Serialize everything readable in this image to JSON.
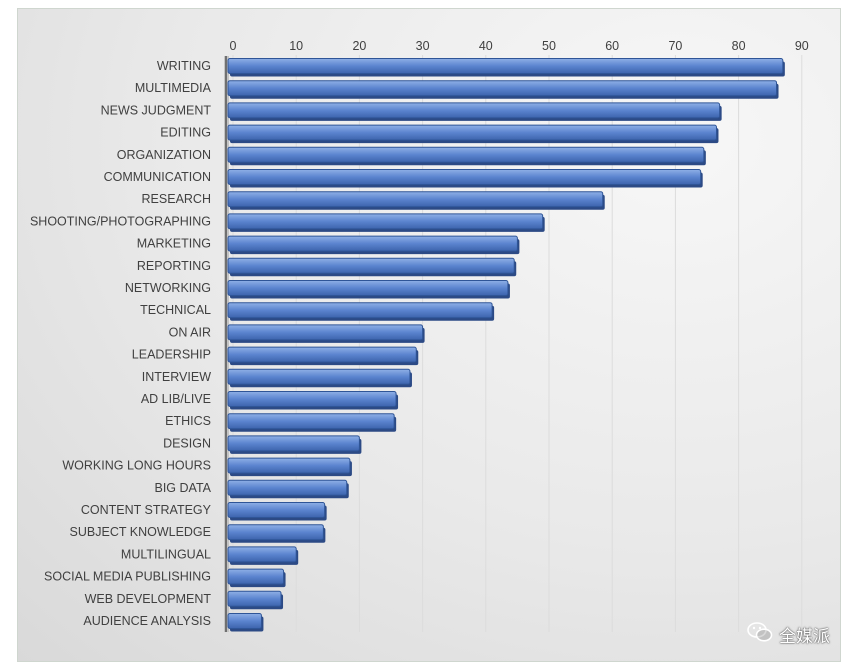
{
  "chart_data": {
    "type": "bar",
    "orientation": "horizontal",
    "title": "",
    "xlabel": "",
    "ylabel": "",
    "xlim": [
      0,
      90
    ],
    "ticks": [
      0,
      10,
      20,
      30,
      40,
      50,
      60,
      70,
      80,
      90
    ],
    "grid": true,
    "categories": [
      "WRITING",
      "MULTIMEDIA",
      "NEWS JUDGMENT",
      "EDITING",
      "ORGANIZATION",
      "COMMUNICATION",
      "RESEARCH",
      "SHOOTING/PHOTOGRAPHING",
      "MARKETING",
      "REPORTING",
      "NETWORKING",
      "TECHNICAL",
      "ON AIR",
      "LEADERSHIP",
      "INTERVIEW",
      "AD LIB/LIVE",
      "ETHICS",
      "DESIGN",
      "WORKING LONG HOURS",
      "BIG DATA",
      "CONTENT STRATEGY",
      "SUBJECT KNOWLEDGE",
      "MULTILINGUAL",
      "SOCIAL MEDIA PUBLISHING",
      "WEB DEVELOPMENT",
      "AUDIENCE ANALYSIS"
    ],
    "values": [
      87,
      86,
      77,
      76.5,
      74.5,
      74,
      58.5,
      49,
      45,
      44.5,
      43.5,
      41,
      30,
      29,
      28,
      25.8,
      25.5,
      20,
      18.5,
      18,
      14.5,
      14.3,
      10,
      8,
      7.6,
      4.5
    ],
    "bar_color": "#4f7ac7"
  },
  "watermark": {
    "text": "全媒派",
    "icon": "wechat-icon"
  }
}
